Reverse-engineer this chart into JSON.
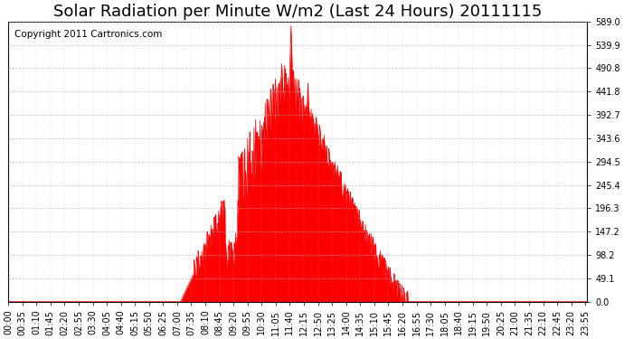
{
  "title": "Solar Radiation per Minute W/m2 (Last 24 Hours) 20111115",
  "copyright": "Copyright 2011 Cartronics.com",
  "y_ticks": [
    0.0,
    49.1,
    98.2,
    147.2,
    196.3,
    245.4,
    294.5,
    343.6,
    392.7,
    441.8,
    490.8,
    539.9,
    589.0
  ],
  "y_max": 589.0,
  "y_min": 0.0,
  "fill_color": "#FF0000",
  "line_color": "#FF0000",
  "dashed_line_color": "#FF0000",
  "grid_color": "#AAAAAA",
  "background_color": "#FFFFFF",
  "title_fontsize": 13,
  "copyright_fontsize": 7.5,
  "tick_fontsize": 7
}
